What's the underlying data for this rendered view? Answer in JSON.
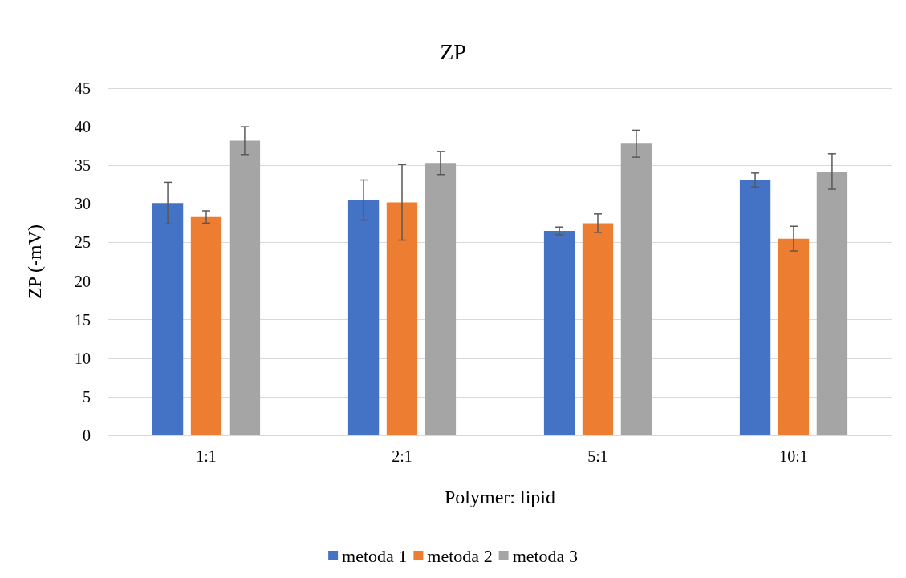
{
  "chart_data": {
    "type": "bar",
    "title": "ZP",
    "xlabel": "Polymer: lipid",
    "ylabel": "ZP (-mV)",
    "categories": [
      "1:1",
      "2:1",
      "5:1",
      "10:1"
    ],
    "series": [
      {
        "name": "metoda 1",
        "color": "#4472c4",
        "values": [
          30.1,
          30.5,
          26.5,
          33.1
        ],
        "errors": [
          2.7,
          2.6,
          0.5,
          0.9
        ]
      },
      {
        "name": "metoda 2",
        "color": "#ed7d31",
        "values": [
          28.3,
          30.2,
          27.5,
          25.5
        ],
        "errors": [
          0.8,
          4.9,
          1.2,
          1.6
        ]
      },
      {
        "name": "metoda 3",
        "color": "#a5a5a5",
        "values": [
          38.2,
          35.3,
          37.8,
          34.2
        ],
        "errors": [
          1.8,
          1.5,
          1.75,
          2.3
        ]
      }
    ],
    "ylim": [
      0,
      45
    ],
    "yticks": [
      0,
      5,
      10,
      15,
      20,
      25,
      30,
      35,
      40,
      45
    ],
    "grid": "y",
    "legend": "bottom"
  }
}
